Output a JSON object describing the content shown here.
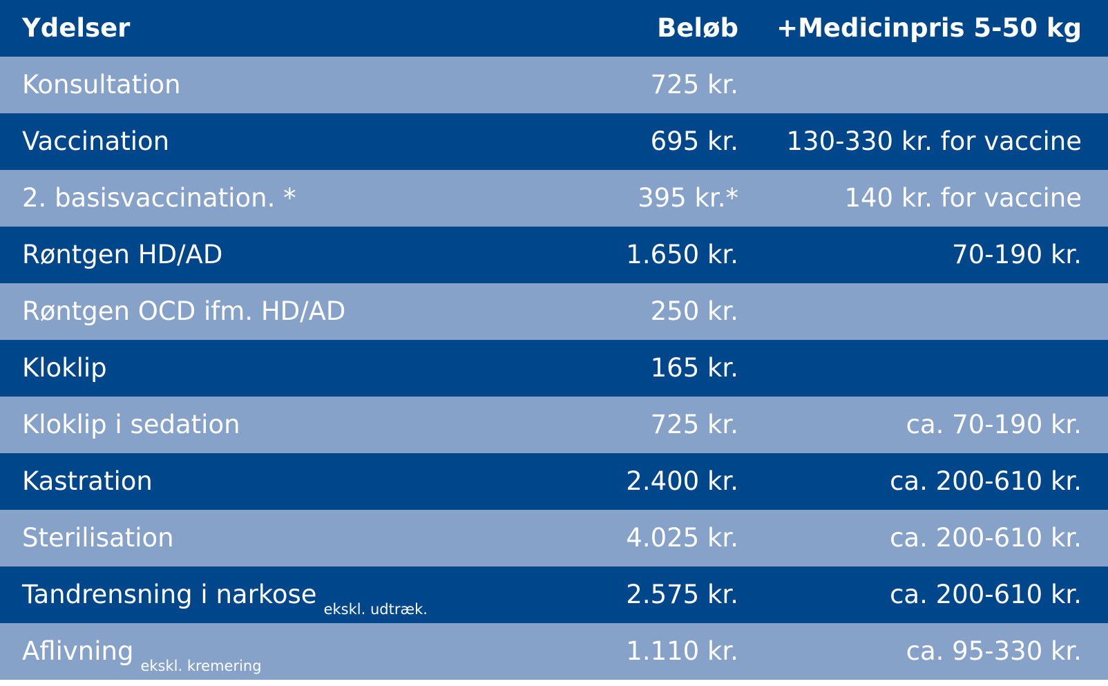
{
  "colors": {
    "dark": "#00468b",
    "light": "#87a2c8",
    "text": "#ffffff"
  },
  "header": {
    "service": "Ydelser",
    "amount": "Beløb",
    "medicine": "+Medicinpris 5-50 kg"
  },
  "rows": [
    {
      "service": "Konsultation",
      "note": "",
      "amount": "725 kr.",
      "medicine": ""
    },
    {
      "service": "Vaccination",
      "note": "",
      "amount": "695 kr.",
      "medicine": "130-330 kr. for vaccine"
    },
    {
      "service": "2. basisvaccination. *",
      "note": "",
      "amount": "395 kr.*",
      "medicine": "140 kr. for vaccine"
    },
    {
      "service": "Røntgen HD/AD",
      "note": "",
      "amount": "1.650 kr.",
      "medicine": "70-190 kr."
    },
    {
      "service": "Røntgen OCD ifm. HD/AD",
      "note": "",
      "amount": "250 kr.",
      "medicine": ""
    },
    {
      "service": "Kloklip",
      "note": "",
      "amount": "165 kr.",
      "medicine": ""
    },
    {
      "service": "Kloklip i sedation",
      "note": "",
      "amount": "725 kr.",
      "medicine": "ca. 70-190 kr."
    },
    {
      "service": "Kastration",
      "note": "",
      "amount": "2.400 kr.",
      "medicine": "ca. 200-610 kr."
    },
    {
      "service": "Sterilisation",
      "note": "",
      "amount": "4.025 kr.",
      "medicine": "ca. 200-610 kr."
    },
    {
      "service": "Tandrensning i narkose",
      "note": "ekskl. udtræk.",
      "amount": "2.575 kr.",
      "medicine": "ca. 200-610 kr."
    },
    {
      "service": "Aflivning",
      "note": "ekskl. kremering",
      "amount": "1.110 kr.",
      "medicine": "ca. 95-330 kr."
    }
  ]
}
